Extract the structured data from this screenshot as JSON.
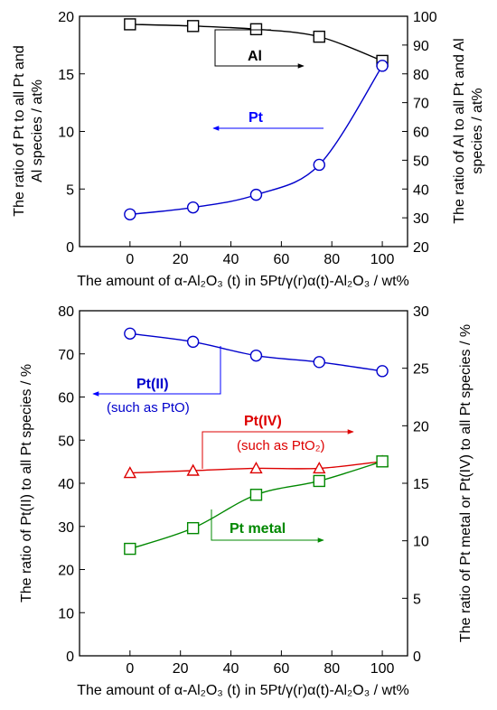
{
  "chart_data": [
    {
      "type": "line",
      "x": [
        0,
        25,
        50,
        75,
        100
      ],
      "xlim": [
        -20,
        110
      ],
      "xticks": [
        "0",
        "20",
        "40",
        "60",
        "80",
        "100"
      ],
      "xlabel": "The amount of α-Al₂O₃ (t) in 5Pt/γ(r)α(t)-Al₂O₃ / wt%",
      "ylabel_left": [
        "The ratio of Pt to all Pt and",
        "Al species / at%"
      ],
      "ylim_left": [
        0,
        20
      ],
      "yticks_left": [
        "0",
        "5",
        "10",
        "15",
        "20"
      ],
      "ylabel_right": [
        "The ratio of Al to all Pt and Al",
        "species / at%"
      ],
      "ylim_right": [
        20,
        100
      ],
      "yticks_right": [
        "20",
        "30",
        "40",
        "50",
        "60",
        "70",
        "80",
        "90",
        "100"
      ],
      "grid": false,
      "series": [
        {
          "name": "Al",
          "axis": "right",
          "marker": "square",
          "color": "#000000",
          "values": [
            97.2,
            96.6,
            95.5,
            92.9,
            84.5
          ]
        },
        {
          "name": "Pt",
          "axis": "left",
          "marker": "circle",
          "color": "#0000cc",
          "values": [
            2.8,
            3.4,
            4.5,
            7.1,
            15.7
          ]
        }
      ],
      "annotations": [
        {
          "text": "Al",
          "color": "#000000",
          "arrow": "right"
        },
        {
          "text": "Pt",
          "color": "#0000ff",
          "arrow": "left"
        }
      ]
    },
    {
      "type": "line",
      "x": [
        0,
        25,
        50,
        75,
        100
      ],
      "xlim": [
        -20,
        110
      ],
      "xticks": [
        "0",
        "20",
        "40",
        "60",
        "80",
        "100"
      ],
      "xlabel": "The amount of α-Al₂O₃ (t) in 5Pt/γ(r)α(t)-Al₂O₃ / wt%",
      "ylabel_left": "The ratio of Pt(II) to all Pt species / %",
      "ylim_left": [
        0,
        80
      ],
      "yticks_left": [
        "0",
        "10",
        "20",
        "30",
        "40",
        "50",
        "60",
        "70",
        "80"
      ],
      "ylabel_right": "The ratio of Pt metal or Pt(IV) to all Pt species / %",
      "ylim_right": [
        0,
        30
      ],
      "yticks_right": [
        "0",
        "5",
        "10",
        "15",
        "20",
        "25",
        "30"
      ],
      "grid": false,
      "series": [
        {
          "name": "Pt(II)",
          "axis": "left",
          "marker": "circle",
          "color": "#0000cc",
          "values": [
            74.7,
            72.8,
            69.6,
            68.1,
            66.0
          ]
        },
        {
          "name": "Pt(IV)",
          "axis": "right",
          "marker": "triangle",
          "color": "#dd0000",
          "values": [
            15.9,
            16.1,
            16.3,
            16.3,
            16.9
          ]
        },
        {
          "name": "Pt metal",
          "axis": "right",
          "marker": "square",
          "color": "#008800",
          "values": [
            9.3,
            11.1,
            14.0,
            15.2,
            16.9
          ]
        }
      ],
      "annotations": [
        {
          "text": "Pt(II)",
          "sub": "(such as PtO)",
          "color": "#0000cc",
          "arrow": "left"
        },
        {
          "text": "Pt(IV)",
          "sub": "(such as PtO₂)",
          "color": "#dd0000",
          "arrow": "right"
        },
        {
          "text": "Pt metal",
          "color": "#008800",
          "arrow": "right"
        }
      ]
    }
  ]
}
